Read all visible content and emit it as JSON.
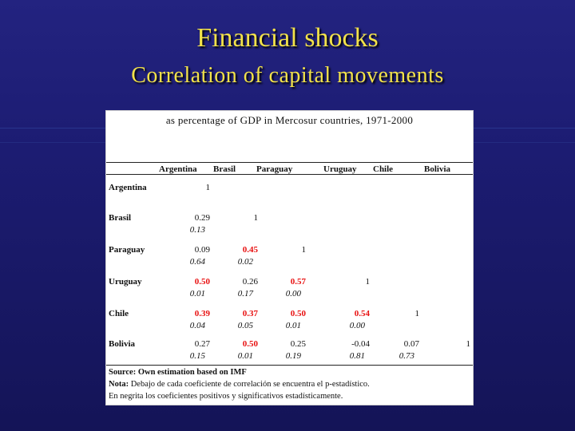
{
  "slide": {
    "title": "Financial shocks",
    "subtitle": "Correlation of capital movements"
  },
  "table": {
    "caption": "as percentage of GDP in Mercosur countries, 1971-2000",
    "columns": [
      "Argentina",
      "Brasil",
      "Paraguay",
      "Uruguay",
      "Chile",
      "Bolivia"
    ],
    "rows": [
      {
        "label": "Argentina",
        "cells": [
          {
            "c": "1",
            "p": ""
          }
        ]
      },
      {
        "label": "Brasil",
        "cells": [
          {
            "c": "0.29",
            "p": "0.13"
          },
          {
            "c": "1",
            "p": ""
          }
        ]
      },
      {
        "label": "Paraguay",
        "cells": [
          {
            "c": "0.09",
            "p": "0.64"
          },
          {
            "c": "0.45",
            "p": "0.02",
            "sig": true
          },
          {
            "c": "1",
            "p": ""
          }
        ]
      },
      {
        "label": "Uruguay",
        "cells": [
          {
            "c": "0.50",
            "p": "0.01",
            "sig": true
          },
          {
            "c": "0.26",
            "p": "0.17"
          },
          {
            "c": "0.57",
            "p": "0.00",
            "sig": true
          },
          {
            "c": "1",
            "p": ""
          }
        ]
      },
      {
        "label": "Chile",
        "cells": [
          {
            "c": "0.39",
            "p": "0.04",
            "sig": true
          },
          {
            "c": "0.37",
            "p": "0.05",
            "sig": true
          },
          {
            "c": "0.50",
            "p": "0.01",
            "sig": true
          },
          {
            "c": "0.54",
            "p": "0.00",
            "sig": true
          },
          {
            "c": "1",
            "p": ""
          }
        ]
      },
      {
        "label": "Bolivia",
        "cells": [
          {
            "c": "0.27",
            "p": "0.15"
          },
          {
            "c": "0.50",
            "p": "0.01",
            "sig": true
          },
          {
            "c": "0.25",
            "p": "0.19"
          },
          {
            "c": "-0.04",
            "p": "0.81"
          },
          {
            "c": "0.07",
            "p": "0.73"
          },
          {
            "c": "1",
            "p": ""
          }
        ]
      }
    ],
    "notes": {
      "source_label": "Source:",
      "source_text": "Own estimation based on IMF",
      "note_label": "Nota:",
      "note_text": "Debajo de cada coeficiente de correlación se encuentra el p-estadístico.",
      "bold_note": "En negrita los coeficientes positivos y significativos estadísticamente."
    }
  },
  "colors": {
    "background": "#1c1c72",
    "title": "#f2e24a",
    "significant": "#e81010"
  }
}
